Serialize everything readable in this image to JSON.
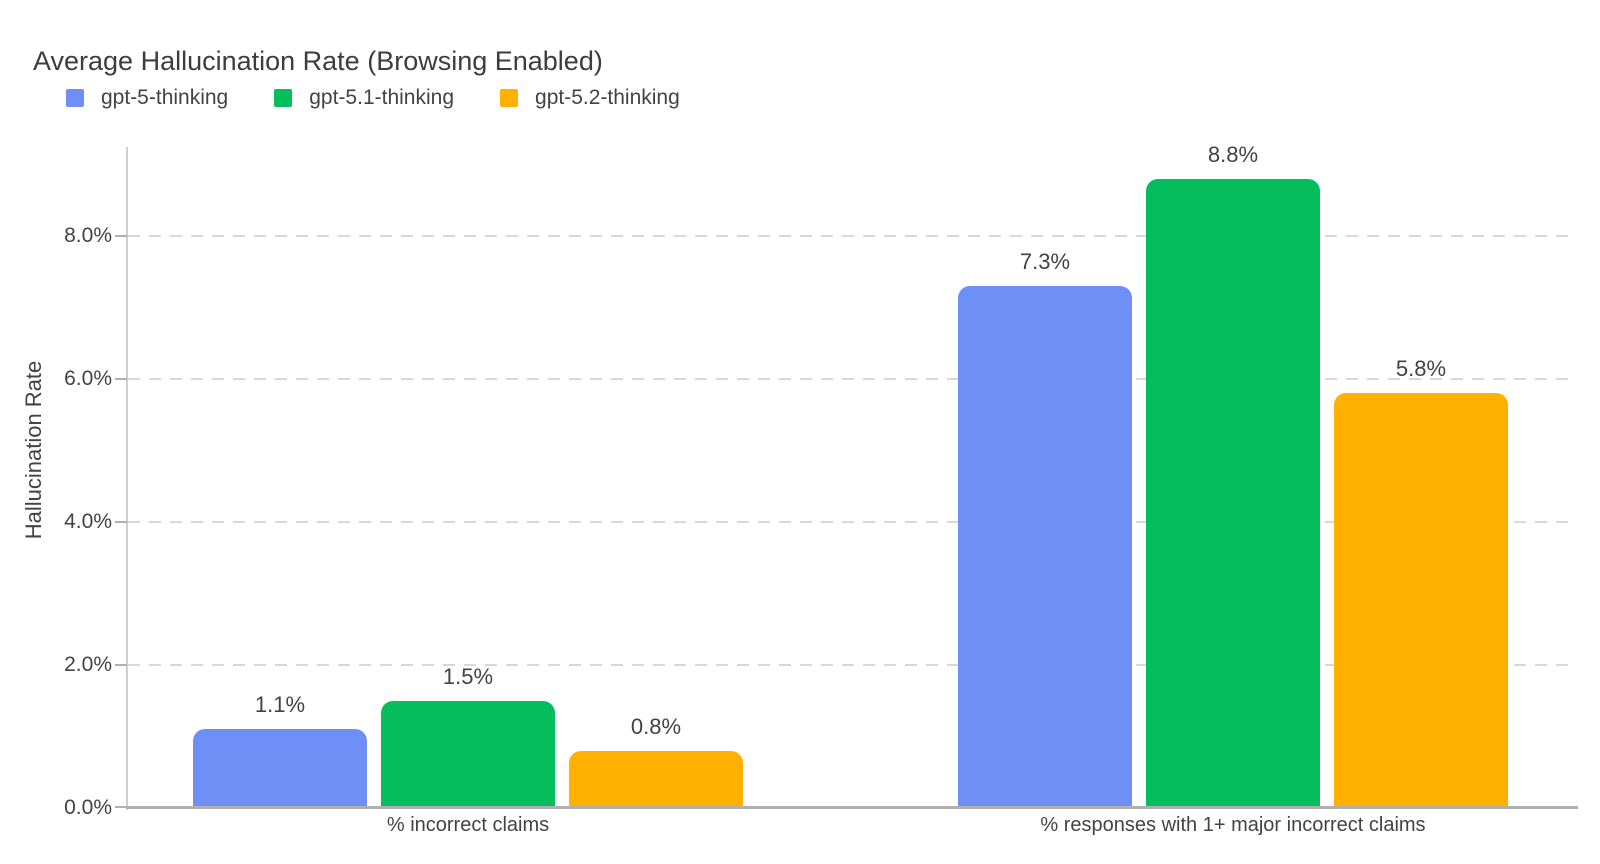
{
  "title": "Average Hallucination Rate (Browsing Enabled)",
  "colors": {
    "text": "#434343",
    "title_text": "#3d3d3d",
    "axis": "#b0b0b0",
    "axis_vertical": "#cfcfcf",
    "gridline": "#d8d8d8",
    "background": "#ffffff"
  },
  "chart_data": {
    "type": "bar",
    "title": "Average Hallucination Rate (Browsing Enabled)",
    "xlabel": "",
    "ylabel": "Hallucination Rate",
    "categories": [
      "% incorrect claims",
      "% responses with 1+ major incorrect claims"
    ],
    "series": [
      {
        "name": "gpt-5-thinking",
        "color": "#6e8ff5",
        "values": [
          1.1,
          7.3
        ],
        "labels": [
          "1.1%",
          "7.3%"
        ]
      },
      {
        "name": "gpt-5.1-thinking",
        "color": "#06bd5e",
        "values": [
          1.5,
          8.8
        ],
        "labels": [
          "1.5%",
          "8.8%"
        ]
      },
      {
        "name": "gpt-5.2-thinking",
        "color": "#ffb000",
        "values": [
          0.8,
          5.8
        ],
        "labels": [
          "0.8%",
          "5.8%"
        ]
      }
    ],
    "yticks": [
      "0.0%",
      "2.0%",
      "4.0%",
      "6.0%",
      "8.0%"
    ],
    "ytick_values": [
      0,
      2,
      4,
      6,
      8
    ],
    "ylim": [
      0,
      9.25
    ],
    "grid": "dashed horizontal",
    "legend_position": "top-left under title",
    "bar_corner": "rounded top"
  }
}
